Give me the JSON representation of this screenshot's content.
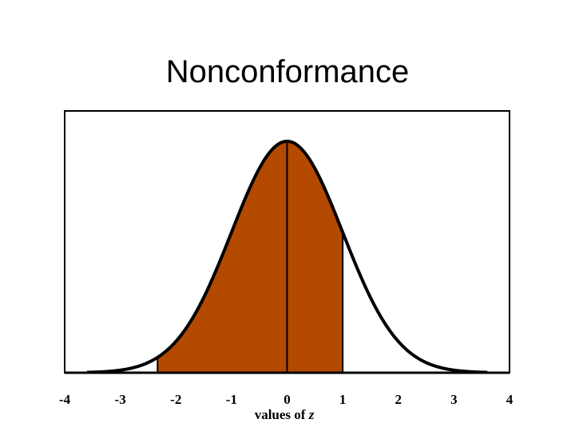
{
  "title": "Nonconformance",
  "chart_data": {
    "type": "area",
    "title": "Nonconformance",
    "xlabel": "values of",
    "xlabel_var": "z",
    "xlim": [
      -4,
      4
    ],
    "x_ticks": [
      -4,
      -3,
      -2,
      -1,
      0,
      1,
      2,
      3,
      4
    ],
    "x_tick_labels": [
      "-4",
      "-3",
      "-2",
      "-1",
      "0",
      "1",
      "2",
      "3",
      "4"
    ],
    "series": [
      {
        "distribution": "standard normal",
        "mean": 0,
        "sd": 1
      }
    ],
    "shaded_region": {
      "from": -2.33,
      "to": 1
    },
    "vertical_lines": [
      -2.33,
      0,
      1
    ],
    "grid": false,
    "colors": {
      "fill": "#B34A00",
      "curve": "#000000",
      "frame": "#000000"
    }
  }
}
